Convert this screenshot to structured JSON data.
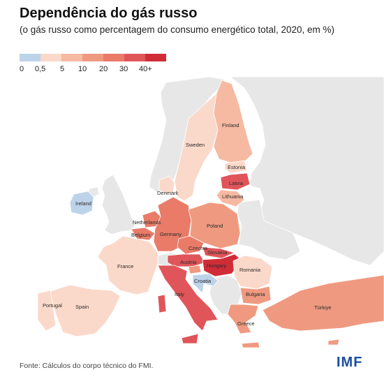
{
  "title": "Dependência do gás russo",
  "subtitle": "(o gás russo como percentagem do consumo energético total, 2020, em %)",
  "legend": {
    "colors": [
      "#bcd3ea",
      "#fbd9ca",
      "#f6b9a1",
      "#ef9a80",
      "#e97b68",
      "#e0555a",
      "#d02c38"
    ],
    "labels": [
      "0",
      "0,5",
      "5",
      "10",
      "20",
      "30",
      "40+"
    ]
  },
  "map": {
    "colors": {
      "water": "#ffffff",
      "nodata": "#e7e7e7",
      "border": "#ffffff",
      "c0": "#bcd3ea",
      "c1": "#fbd9ca",
      "c2": "#f6b9a1",
      "c3": "#ef9a80",
      "c4": "#e97b68",
      "c5": "#e0555a",
      "c6": "#d02c38"
    },
    "countries": {
      "finland": "Finland",
      "sweden": "Sweden",
      "estonia": "Estonia",
      "latvia": "Latvia",
      "lithuania": "Lithuania",
      "denmark": "Denmark",
      "ireland": "Ireland",
      "netherlands": "Netherlands",
      "belgium": "Belgium",
      "germany": "Germany",
      "poland": "Poland",
      "czechia": "Czechia",
      "slovakia": "Slovakia",
      "austria": "Austria",
      "hungary": "Hungary",
      "france": "France",
      "romania": "Romania",
      "croatia": "Croatia",
      "portugal": "Portugal",
      "spain": "Spain",
      "italy": "Italy",
      "bulgaria": "Bulgaria",
      "greece": "Greece",
      "turkiye": "Türkiye"
    }
  },
  "footer": {
    "source": "Fonte: Cálculos do corpo técnico do FMI.",
    "logo": "IMF"
  }
}
